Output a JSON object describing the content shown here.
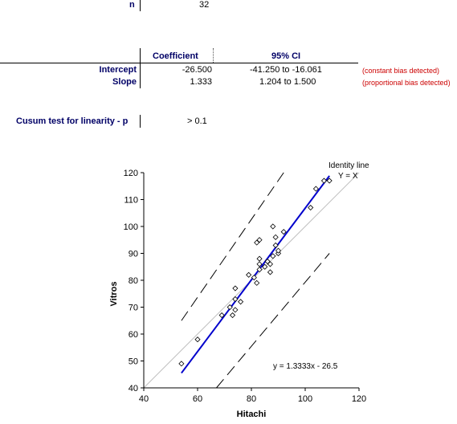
{
  "summary": {
    "n_label": "n",
    "n_value": "32"
  },
  "table": {
    "col_coef": "Coefficient",
    "col_ci": "95% CI",
    "rows": [
      {
        "label": "Intercept",
        "coef": "-26.500",
        "ci": "-41.250  to -16.061",
        "note": "(constant bias detected)"
      },
      {
        "label": "Slope",
        "coef": "1.333",
        "ci": "1.204  to 1.500",
        "note": "(proportional bias detected)"
      }
    ]
  },
  "cusum": {
    "label": "Cusum test for linearity - p",
    "value": "> 0.1"
  },
  "chart_data": {
    "type": "scatter",
    "xlabel": "Hitachi",
    "ylabel": "Vitros",
    "xlim": [
      40,
      120
    ],
    "ylim": [
      40,
      120
    ],
    "x_ticks": [
      40,
      60,
      80,
      100,
      120
    ],
    "y_ticks": [
      40,
      50,
      60,
      70,
      80,
      90,
      100,
      110,
      120
    ],
    "identity_label_1": "Identity line",
    "identity_label_2": "Y = X",
    "equation": "y = 1.3333x - 26.5",
    "points": [
      {
        "x": 54,
        "y": 49
      },
      {
        "x": 60,
        "y": 58
      },
      {
        "x": 69,
        "y": 67
      },
      {
        "x": 72,
        "y": 70
      },
      {
        "x": 73,
        "y": 67
      },
      {
        "x": 74,
        "y": 69
      },
      {
        "x": 74,
        "y": 73
      },
      {
        "x": 74,
        "y": 77
      },
      {
        "x": 76,
        "y": 72
      },
      {
        "x": 79,
        "y": 82
      },
      {
        "x": 81,
        "y": 81
      },
      {
        "x": 82,
        "y": 79
      },
      {
        "x": 82,
        "y": 94
      },
      {
        "x": 83,
        "y": 95
      },
      {
        "x": 83,
        "y": 84
      },
      {
        "x": 83,
        "y": 86
      },
      {
        "x": 83,
        "y": 88
      },
      {
        "x": 85,
        "y": 85
      },
      {
        "x": 86,
        "y": 87
      },
      {
        "x": 87,
        "y": 83
      },
      {
        "x": 87,
        "y": 86
      },
      {
        "x": 88,
        "y": 89
      },
      {
        "x": 88,
        "y": 100
      },
      {
        "x": 89,
        "y": 93
      },
      {
        "x": 89,
        "y": 96
      },
      {
        "x": 90,
        "y": 90
      },
      {
        "x": 90,
        "y": 91
      },
      {
        "x": 92,
        "y": 98
      },
      {
        "x": 102,
        "y": 107
      },
      {
        "x": 104,
        "y": 114
      },
      {
        "x": 107,
        "y": 117
      },
      {
        "x": 109,
        "y": 117
      }
    ],
    "regression": {
      "x1": 54,
      "y1": 45.5,
      "x2": 109,
      "y2": 118.8
    },
    "upper_ci": {
      "x1": 54,
      "y1": 65,
      "x2": 92,
      "y2": 120
    },
    "lower_ci": {
      "x1": 67,
      "y1": 40,
      "x2": 109,
      "y2": 90
    },
    "colors": {
      "regression": "#0000cc",
      "identity": "#c0c0c0",
      "ci": "#000000"
    }
  }
}
